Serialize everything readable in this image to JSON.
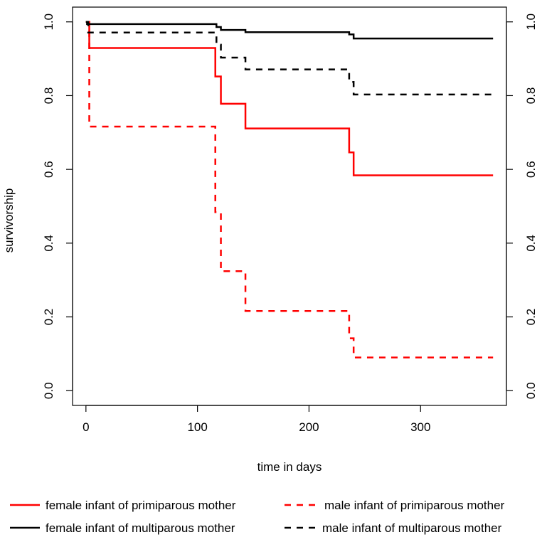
{
  "chart_data": {
    "type": "line",
    "title": "",
    "xlabel": "time in days",
    "ylabel": "survivorship",
    "xlim": [
      -12,
      377
    ],
    "ylim": [
      -0.04,
      1.04
    ],
    "x_ticks": [
      0,
      100,
      200,
      300
    ],
    "x_tick_labels": [
      "0",
      "100",
      "200",
      "300"
    ],
    "y_ticks": [
      0.0,
      0.2,
      0.4,
      0.6,
      0.8,
      1.0
    ],
    "y_tick_labels": [
      "0.0",
      "0.2",
      "0.4",
      "0.6",
      "0.8",
      "1.0"
    ],
    "right_axis": true,
    "grid": false,
    "step": true,
    "legend_position": "bottom",
    "series": [
      {
        "name": "female infant of primiparous mother",
        "color": "#ff0000",
        "dash": "solid",
        "x": [
          0,
          3,
          116,
          121,
          143,
          236,
          240,
          365
        ],
        "y": [
          1.0,
          0.929,
          0.852,
          0.778,
          0.711,
          0.646,
          0.584,
          0.584
        ]
      },
      {
        "name": "male infant of primiparous mother",
        "color": "#ff0000",
        "dash": "dashed",
        "x": [
          0,
          3,
          116,
          121,
          143,
          236,
          240,
          365
        ],
        "y": [
          1.0,
          0.716,
          0.484,
          0.324,
          0.216,
          0.142,
          0.09,
          0.09
        ]
      },
      {
        "name": "female infant of multiparous mother",
        "color": "#000000",
        "dash": "solid",
        "x": [
          0,
          1,
          117,
          121,
          143,
          236,
          240,
          365
        ],
        "y": [
          1.0,
          0.994,
          0.986,
          0.978,
          0.972,
          0.966,
          0.955,
          0.955
        ]
      },
      {
        "name": "male infant of multiparous mother",
        "color": "#000000",
        "dash": "dashed",
        "x": [
          0,
          2,
          117,
          121,
          143,
          236,
          240,
          365
        ],
        "y": [
          1.0,
          0.971,
          0.938,
          0.903,
          0.871,
          0.837,
          0.803,
          0.803
        ]
      }
    ]
  }
}
